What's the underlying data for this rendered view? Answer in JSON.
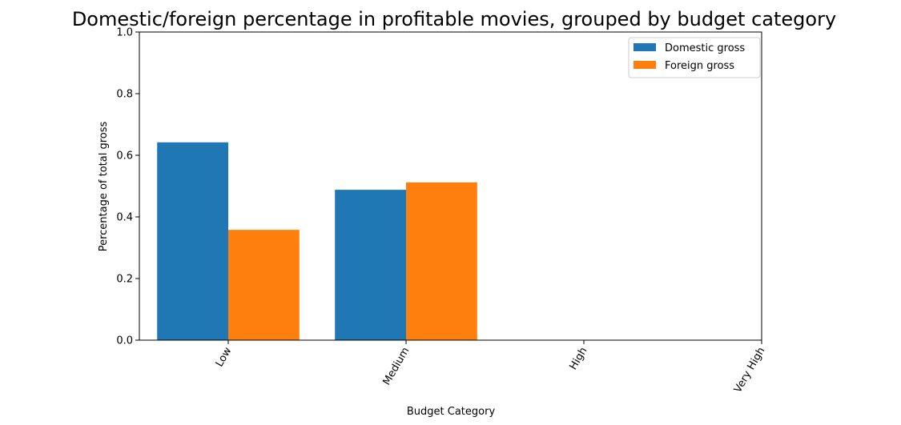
{
  "chart_data": {
    "type": "bar",
    "title": "Domestic/foreign percentage in profitable movies, grouped by budget category",
    "xlabel": "Budget Category",
    "ylabel": "Percentage of total gross",
    "categories": [
      "Low",
      "Medium",
      "High",
      "Very High"
    ],
    "series": [
      {
        "name": "Domestic gross",
        "color": "#1f77b4",
        "values": [
          0.642,
          0.488,
          0,
          0
        ]
      },
      {
        "name": "Foreign gross",
        "color": "#ff7f0e",
        "values": [
          0.358,
          0.512,
          0,
          0
        ]
      }
    ],
    "ylim": [
      0,
      1.0
    ],
    "yticks": [
      "0.0",
      "0.2",
      "0.4",
      "0.6",
      "0.8",
      "1.0"
    ],
    "xtick_rotation": "60 degrees",
    "grid": false,
    "legend_position": "top-right"
  }
}
